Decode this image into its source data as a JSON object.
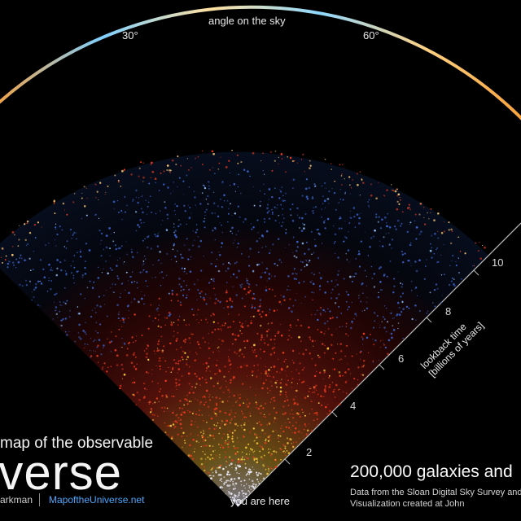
{
  "top_axis": {
    "title": "angle on the sky",
    "labels": [
      "30°",
      "60°"
    ]
  },
  "side_axis": {
    "title_line1": "lookback time",
    "title_line2": "[billions of years]",
    "ticks": [
      "2",
      "4",
      "6",
      "8",
      "10"
    ]
  },
  "origin_label": "you are here",
  "title_block": {
    "line1": "map of the observable",
    "line2": "iverse",
    "credit_name": "arkman",
    "credit_url": "MapoftheUniverse.net"
  },
  "caption": {
    "headline": "200,000 galaxies and",
    "line1": "Data from the Sloan Digital Sky Survey and",
    "line2": "Visualization created at John"
  },
  "colors": {
    "background": "#000000",
    "near": "#f2f2ff",
    "mid_near": "#f5c63a",
    "mid": "#e53a1e",
    "far": "#3a62c8",
    "rim": "#f0c070"
  }
}
